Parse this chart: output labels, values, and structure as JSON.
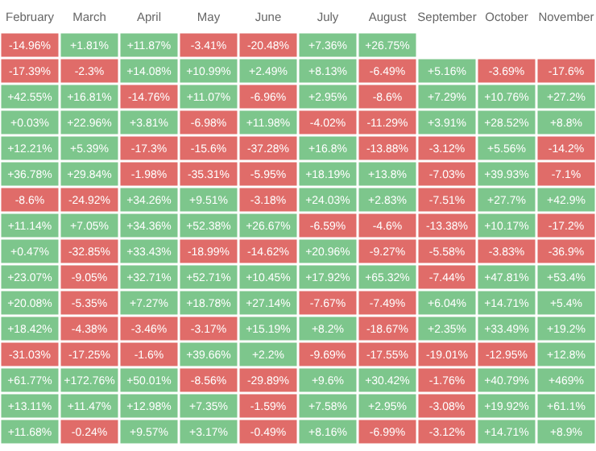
{
  "chart_data": {
    "type": "heatmap",
    "categories": [
      "February",
      "March",
      "April",
      "May",
      "June",
      "July",
      "August",
      "September",
      "October",
      "November"
    ],
    "colors": [
      "#e06c69",
      "#7dc68c"
    ],
    "y_categories": [
      null,
      null,
      null,
      null,
      null,
      null,
      null,
      null,
      null,
      null,
      null,
      null,
      null,
      null,
      null,
      null
    ],
    "cells": [
      [
        -14.96,
        1.81,
        11.87,
        -3.41,
        -20.48,
        7.36,
        26.75,
        null,
        null,
        null
      ],
      [
        -17.39,
        -2.3,
        14.08,
        10.99,
        2.49,
        8.13,
        -6.49,
        5.16,
        -3.69,
        -17.6
      ],
      [
        42.55,
        16.81,
        -14.76,
        11.07,
        -6.96,
        2.95,
        -8.6,
        7.29,
        10.76,
        27.2
      ],
      [
        0.03,
        22.96,
        3.81,
        -6.98,
        11.98,
        -4.02,
        -11.29,
        3.91,
        28.52,
        8.8
      ],
      [
        12.21,
        5.39,
        -17.3,
        -15.6,
        -37.28,
        16.8,
        -13.88,
        -3.12,
        5.56,
        -14.2
      ],
      [
        36.78,
        29.84,
        -1.98,
        -35.31,
        -5.95,
        18.19,
        13.8,
        -7.03,
        39.93,
        -7.1
      ],
      [
        -8.6,
        -24.92,
        34.26,
        9.51,
        -3.18,
        24.03,
        2.83,
        -7.51,
        27.7,
        42.9
      ],
      [
        11.14,
        7.05,
        34.36,
        52.38,
        26.67,
        -6.59,
        -4.6,
        -13.38,
        10.17,
        -17.2
      ],
      [
        0.47,
        -32.85,
        33.43,
        -18.99,
        -14.62,
        20.96,
        -9.27,
        -5.58,
        -3.83,
        -36.9
      ],
      [
        23.07,
        -9.05,
        32.71,
        52.71,
        10.45,
        17.92,
        65.32,
        -7.44,
        47.81,
        53.4
      ],
      [
        20.08,
        -5.35,
        7.27,
        18.78,
        27.14,
        -7.67,
        -7.49,
        6.04,
        14.71,
        5.4
      ],
      [
        18.42,
        -4.38,
        -3.46,
        -3.17,
        15.19,
        8.2,
        -18.67,
        2.35,
        33.49,
        19.2
      ],
      [
        -31.03,
        -17.25,
        -1.6,
        39.66,
        2.2,
        -9.69,
        -17.55,
        -19.01,
        -12.95,
        12.8
      ],
      [
        61.77,
        172.76,
        50.01,
        -8.56,
        -29.89,
        9.6,
        30.42,
        -1.76,
        40.79,
        469
      ],
      [
        13.11,
        11.47,
        12.98,
        7.35,
        -1.59,
        7.58,
        2.95,
        -3.08,
        19.92,
        61.1
      ],
      [
        11.68,
        -0.24,
        9.57,
        3.17,
        -0.49,
        8.16,
        -6.99,
        -3.12,
        14.71,
        8.9
      ]
    ],
    "cell_labels": [
      [
        "-14.96%",
        "+1.81%",
        "+11.87%",
        "-3.41%",
        "-20.48%",
        "+7.36%",
        "+26.75%",
        null,
        null,
        null
      ],
      [
        "-17.39%",
        "-2.3%",
        "+14.08%",
        "+10.99%",
        "+2.49%",
        "+8.13%",
        "-6.49%",
        "+5.16%",
        "-3.69%",
        "-17.6%"
      ],
      [
        "+42.55%",
        "+16.81%",
        "-14.76%",
        "+11.07%",
        "-6.96%",
        "+2.95%",
        "-8.6%",
        "+7.29%",
        "+10.76%",
        "+27.2%"
      ],
      [
        "+0.03%",
        "+22.96%",
        "+3.81%",
        "-6.98%",
        "+11.98%",
        "-4.02%",
        "-11.29%",
        "+3.91%",
        "+28.52%",
        "+8.8%"
      ],
      [
        "+12.21%",
        "+5.39%",
        "-17.3%",
        "-15.6%",
        "-37.28%",
        "+16.8%",
        "-13.88%",
        "-3.12%",
        "+5.56%",
        "-14.2%"
      ],
      [
        "+36.78%",
        "+29.84%",
        "-1.98%",
        "-35.31%",
        "-5.95%",
        "+18.19%",
        "+13.8%",
        "-7.03%",
        "+39.93%",
        "-7.1%"
      ],
      [
        "-8.6%",
        "-24.92%",
        "+34.26%",
        "+9.51%",
        "-3.18%",
        "+24.03%",
        "+2.83%",
        "-7.51%",
        "+27.7%",
        "+42.9%"
      ],
      [
        "+11.14%",
        "+7.05%",
        "+34.36%",
        "+52.38%",
        "+26.67%",
        "-6.59%",
        "-4.6%",
        "-13.38%",
        "+10.17%",
        "-17.2%"
      ],
      [
        "+0.47%",
        "-32.85%",
        "+33.43%",
        "-18.99%",
        "-14.62%",
        "+20.96%",
        "-9.27%",
        "-5.58%",
        "-3.83%",
        "-36.9%"
      ],
      [
        "+23.07%",
        "-9.05%",
        "+32.71%",
        "+52.71%",
        "+10.45%",
        "+17.92%",
        "+65.32%",
        "-7.44%",
        "+47.81%",
        "+53.4%"
      ],
      [
        "+20.08%",
        "-5.35%",
        "+7.27%",
        "+18.78%",
        "+27.14%",
        "-7.67%",
        "-7.49%",
        "+6.04%",
        "+14.71%",
        "+5.4%"
      ],
      [
        "+18.42%",
        "-4.38%",
        "-3.46%",
        "-3.17%",
        "+15.19%",
        "+8.2%",
        "-18.67%",
        "+2.35%",
        "+33.49%",
        "+19.2%"
      ],
      [
        "-31.03%",
        "-17.25%",
        "-1.6%",
        "+39.66%",
        "+2.2%",
        "-9.69%",
        "-17.55%",
        "-19.01%",
        "-12.95%",
        "+12.8%"
      ],
      [
        "+61.77%",
        "+172.76%",
        "+50.01%",
        "-8.56%",
        "-29.89%",
        "+9.6%",
        "+30.42%",
        "-1.76%",
        "+40.79%",
        "+469%"
      ],
      [
        "+13.11%",
        "+11.47%",
        "+12.98%",
        "+7.35%",
        "-1.59%",
        "+7.58%",
        "+2.95%",
        "-3.08%",
        "+19.92%",
        "+61.1%"
      ],
      [
        "+11.68%",
        "-0.24%",
        "+9.57%",
        "+3.17%",
        "-0.49%",
        "+8.16%",
        "-6.99%",
        "-3.12%",
        "+14.71%",
        "+8.9%"
      ]
    ]
  }
}
